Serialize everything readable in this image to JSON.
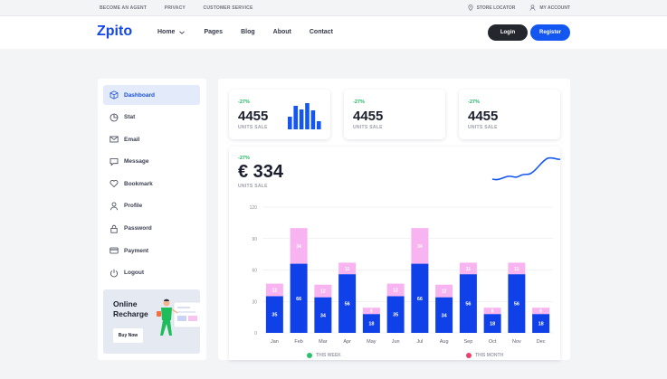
{
  "topbar": {
    "left_links": [
      "BECOME AN AGENT",
      "PRIVACY",
      "CUSTOMER SERVICE"
    ],
    "store_locator": "STORE LOCATOR",
    "my_account": "MY ACCOUNT"
  },
  "header": {
    "logo": "Zpito",
    "nav": [
      "Home",
      "Pages",
      "Blog",
      "About",
      "Contact"
    ],
    "login": "Login",
    "register": "Register"
  },
  "sidebar": {
    "items": [
      {
        "label": "Dashboard",
        "icon": "cube-icon"
      },
      {
        "label": "Stat",
        "icon": "pie-icon"
      },
      {
        "label": "Email",
        "icon": "mail-icon"
      },
      {
        "label": "Message",
        "icon": "message-icon"
      },
      {
        "label": "Bookmark",
        "icon": "heart-icon"
      },
      {
        "label": "Profile",
        "icon": "user-icon"
      },
      {
        "label": "Password",
        "icon": "lock-icon"
      },
      {
        "label": "Payment",
        "icon": "card-icon"
      },
      {
        "label": "Logout",
        "icon": "power-icon"
      }
    ],
    "promo": {
      "title_line1": "Online",
      "title_line2": "Recharge",
      "button": "Buy Now"
    }
  },
  "stats": [
    {
      "change": "-27%",
      "value": "4455",
      "label": "UNITS SALE"
    },
    {
      "change": "-27%",
      "value": "4455",
      "label": "UNITS SALE"
    },
    {
      "change": "-27%",
      "value": "4455",
      "label": "UNITS SALE"
    }
  ],
  "summary": {
    "change": "-27%",
    "value": "€ 334",
    "label": "UNITS SALE"
  },
  "colors": {
    "accent": "#1456f0",
    "positive": "#1eb85f",
    "bar_primary": "#1040e8",
    "bar_secondary": "#f7b4f0",
    "legend_week": "#2ac36b",
    "legend_month": "#ec3f6b"
  },
  "chart_data": {
    "type": "bar",
    "stacked": true,
    "categories": [
      "Jan",
      "Feb",
      "Mar",
      "Apr",
      "May",
      "Jun",
      "Jul",
      "Aug",
      "Sep",
      "Oct",
      "Nov",
      "Dec"
    ],
    "series": [
      {
        "name": "THIS WEEK",
        "values": [
          35,
          66,
          34,
          56,
          18,
          35,
          66,
          34,
          56,
          18,
          56,
          18
        ]
      },
      {
        "name": "THIS MONTH",
        "values": [
          12,
          34,
          12,
          11,
          6,
          12,
          34,
          12,
          11,
          6,
          11,
          6
        ]
      }
    ],
    "yticks": [
      0,
      30,
      60,
      90,
      120
    ],
    "ylim": [
      0,
      120
    ],
    "grid": true,
    "legend_position": "bottom"
  }
}
